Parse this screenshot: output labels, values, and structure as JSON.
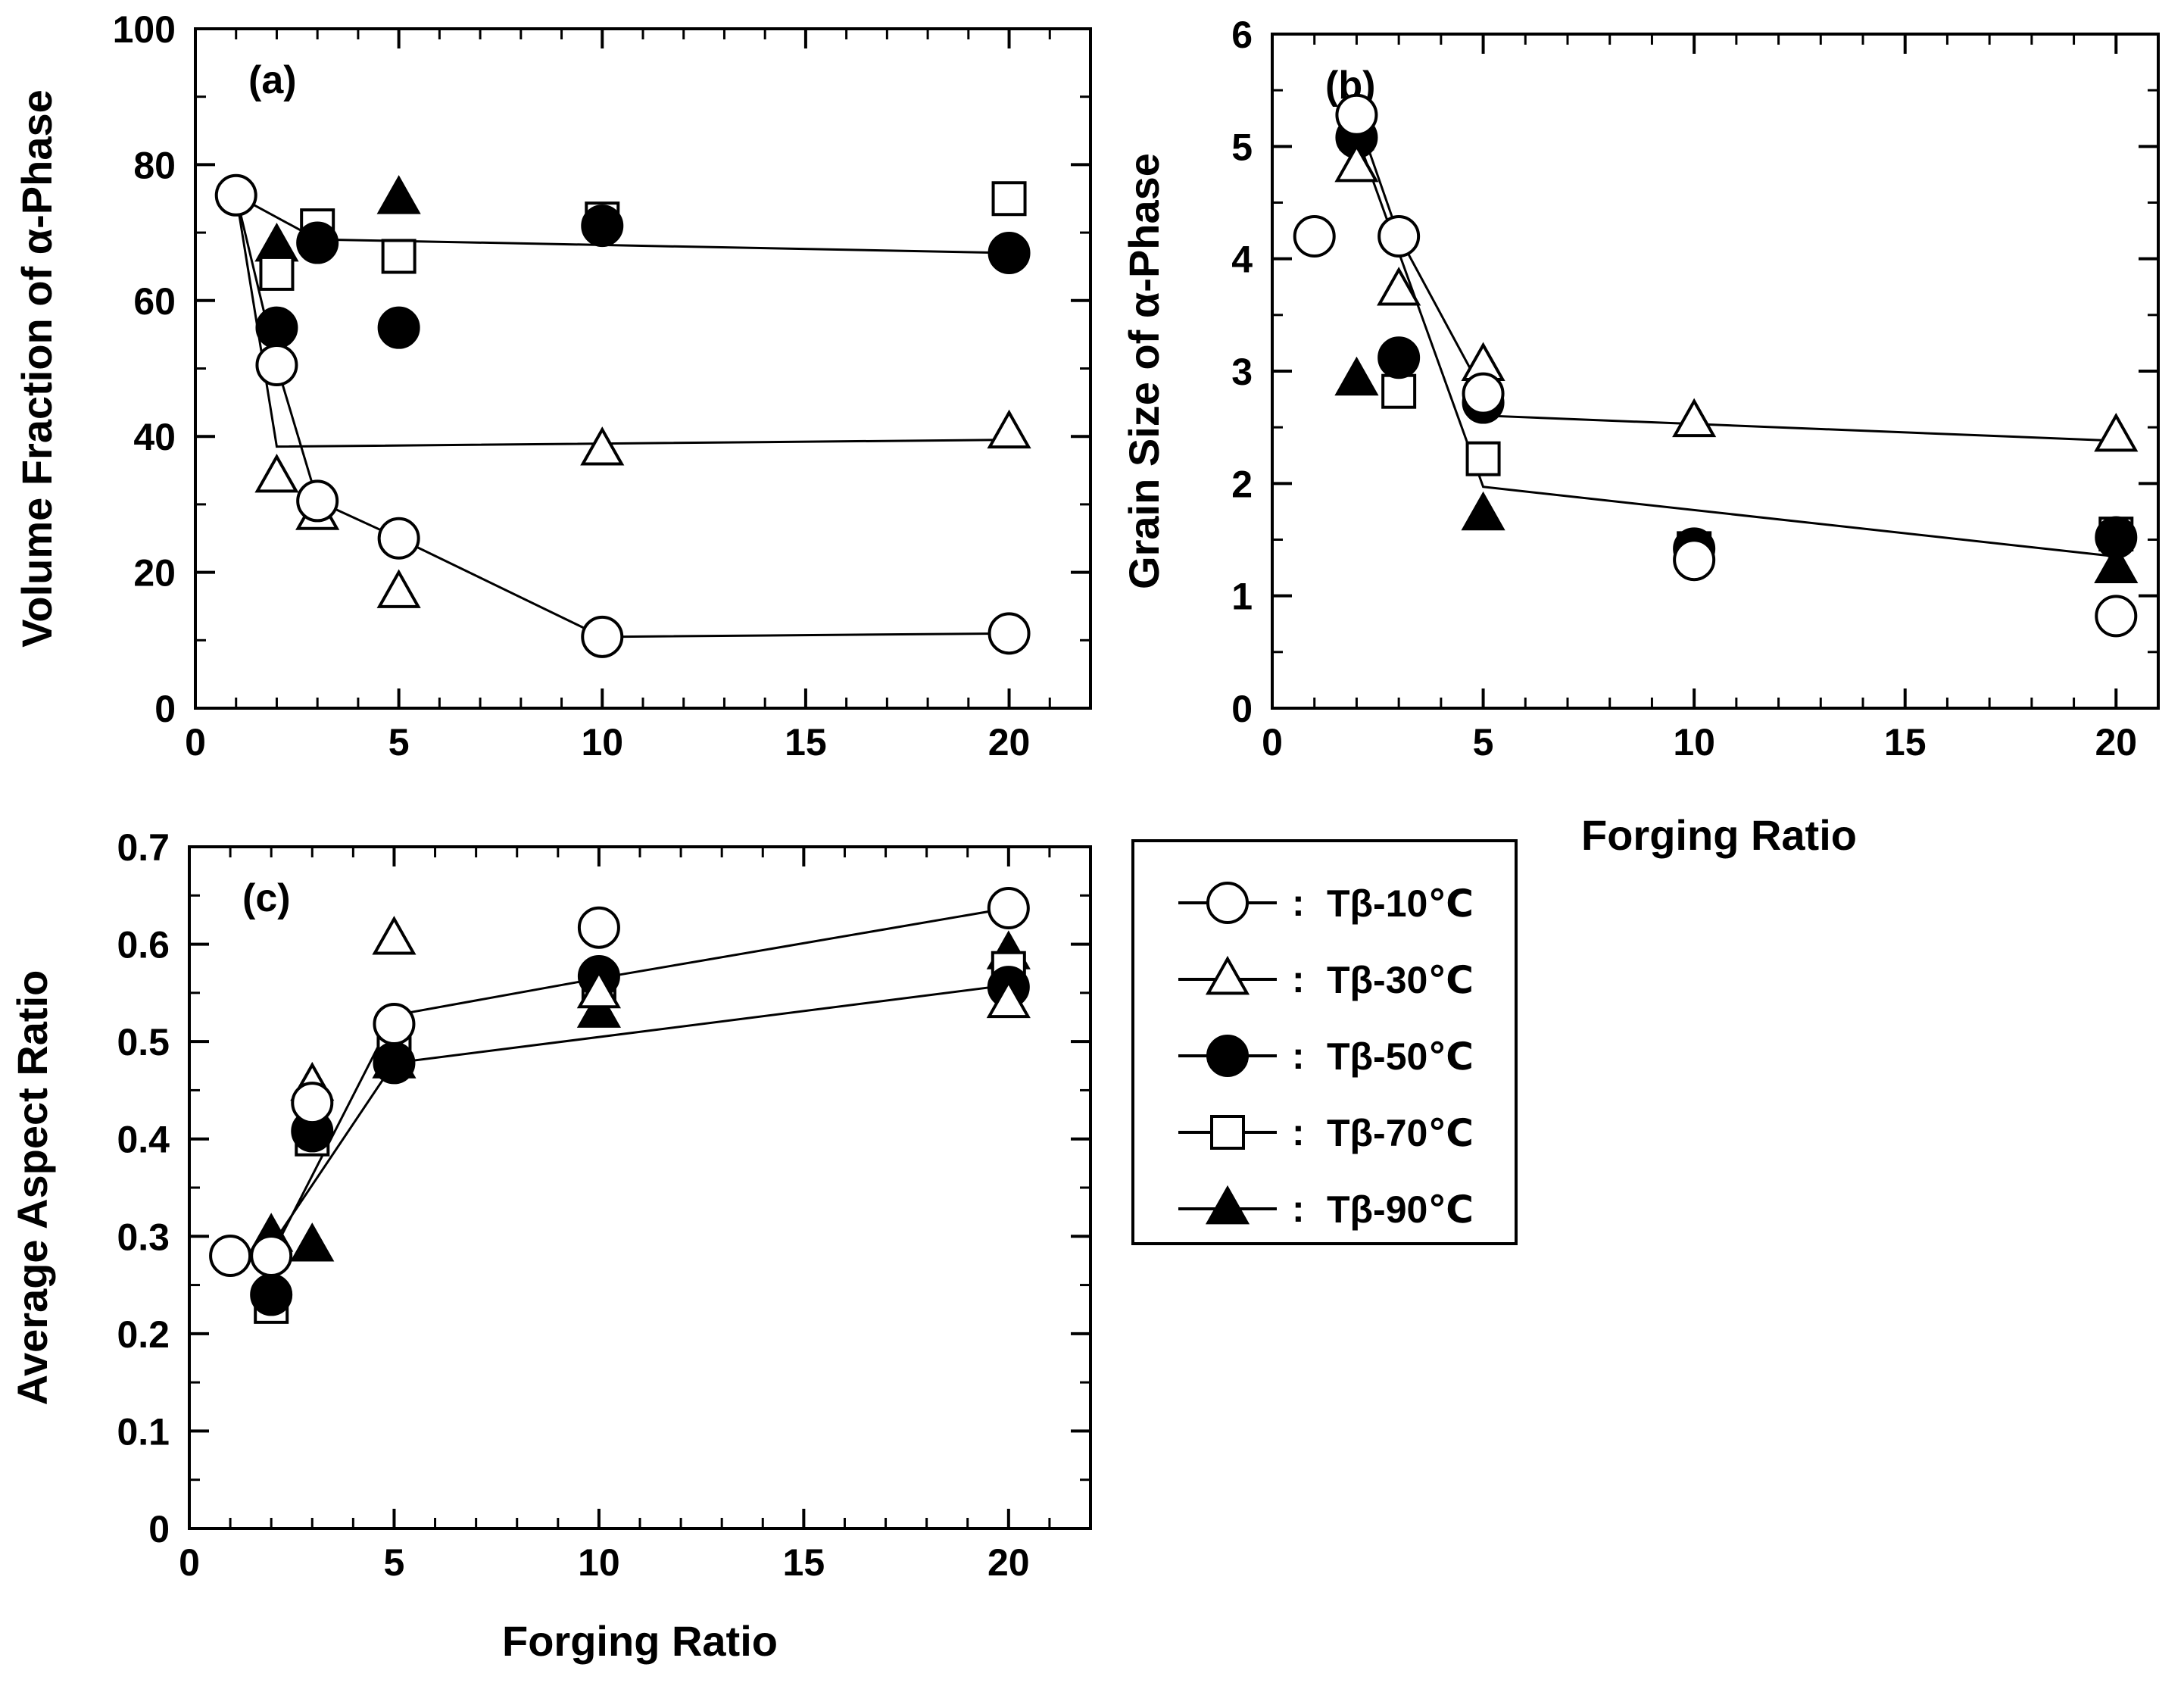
{
  "chart_data": [
    {
      "type": "scatter",
      "panel_label": "(a)",
      "xlabel": "",
      "ylabel": "Volume Fraction of α-Phase",
      "xlim": [
        0,
        22
      ],
      "ylim": [
        0,
        100
      ],
      "xticks": [
        0,
        5,
        10,
        15,
        20
      ],
      "yticks": [
        0,
        20,
        40,
        60,
        80,
        100
      ],
      "xtick_labels": [
        "0",
        "5",
        "10",
        "15",
        "20"
      ],
      "ytick_labels": [
        "0",
        "20",
        "40",
        "60",
        "80",
        "100"
      ],
      "series": [
        {
          "name": "Tβ-10℃",
          "marker": "circle-open",
          "x": [
            1,
            2,
            3,
            5,
            10,
            20
          ],
          "y": [
            75.5,
            50.5,
            30.5,
            25,
            10.5,
            11
          ]
        },
        {
          "name": "Tβ-30℃",
          "marker": "triangle-open",
          "x": [
            2,
            3,
            5,
            10,
            20
          ],
          "y": [
            34,
            28.5,
            17,
            38,
            40.5
          ]
        },
        {
          "name": "Tβ-50℃",
          "marker": "circle-filled",
          "x": [
            2,
            3,
            5,
            10,
            20
          ],
          "y": [
            56,
            68.5,
            56,
            71,
            67
          ]
        },
        {
          "name": "Tβ-70℃",
          "marker": "square-open",
          "x": [
            2,
            3,
            5,
            10,
            20
          ],
          "y": [
            64,
            71,
            66.5,
            72,
            75
          ]
        },
        {
          "name": "Tβ-90℃",
          "marker": "triangle-filled",
          "x": [
            2,
            5
          ],
          "y": [
            68,
            75
          ]
        }
      ],
      "trend_lines": [
        {
          "x": [
            1,
            2,
            3,
            5,
            10,
            20
          ],
          "y": [
            75.5,
            50.5,
            30.5,
            25,
            10.5,
            11
          ]
        },
        {
          "x": [
            1,
            2,
            20
          ],
          "y": [
            75.5,
            38.5,
            39.5
          ]
        },
        {
          "x": [
            1,
            3,
            20
          ],
          "y": [
            75.5,
            69,
            67
          ]
        }
      ]
    },
    {
      "type": "scatter",
      "panel_label": "(b)",
      "xlabel": "Forging Ratio",
      "ylabel": "Grain Size of α-Phase",
      "xlim": [
        0,
        21
      ],
      "ylim": [
        0,
        6
      ],
      "xticks": [
        0,
        5,
        10,
        15,
        20
      ],
      "yticks": [
        0,
        1,
        2,
        3,
        4,
        5,
        6
      ],
      "xtick_labels": [
        "0",
        "5",
        "10",
        "15",
        "20"
      ],
      "ytick_labels": [
        "0",
        "1",
        "2",
        "3",
        "4",
        "5",
        "6"
      ],
      "series": [
        {
          "name": "Tβ-10℃",
          "marker": "circle-open",
          "x": [
            1,
            2,
            3,
            5,
            10,
            20
          ],
          "y": [
            4.2,
            5.28,
            4.2,
            2.8,
            1.32,
            0.82
          ]
        },
        {
          "name": "Tβ-30℃",
          "marker": "triangle-open",
          "x": [
            2,
            3,
            5,
            10,
            20
          ],
          "y": [
            4.82,
            3.72,
            3.05,
            2.55,
            2.42
          ]
        },
        {
          "name": "Tβ-50℃",
          "marker": "circle-filled",
          "x": [
            2,
            3,
            5,
            10,
            20
          ],
          "y": [
            5.08,
            3.12,
            2.72,
            1.42,
            1.52
          ]
        },
        {
          "name": "Tβ-70℃",
          "marker": "square-open",
          "x": [
            2,
            3,
            5,
            10,
            20
          ],
          "y": [
            5.12,
            2.82,
            2.22,
            1.42,
            1.55
          ]
        },
        {
          "name": "Tβ-90℃",
          "marker": "triangle-filled",
          "x": [
            2,
            5,
            20
          ],
          "y": [
            2.92,
            1.72,
            1.25
          ]
        }
      ],
      "trend_lines": [
        {
          "x": [
            2,
            3,
            5.3,
            20
          ],
          "y": [
            5.28,
            4.2,
            2.6,
            2.38
          ]
        },
        {
          "x": [
            2,
            5,
            20
          ],
          "y": [
            5.1,
            1.97,
            1.35
          ]
        }
      ]
    },
    {
      "type": "scatter",
      "panel_label": "(c)",
      "xlabel": "Forging Ratio",
      "ylabel": "Average Aspect Ratio",
      "xlim": [
        0,
        22
      ],
      "ylim": [
        0,
        0.7
      ],
      "xticks": [
        0,
        5,
        10,
        15,
        20
      ],
      "yticks": [
        0,
        0.1,
        0.2,
        0.3,
        0.4,
        0.5,
        0.6,
        0.7
      ],
      "xtick_labels": [
        "0",
        "5",
        "10",
        "15",
        "20"
      ],
      "ytick_labels": [
        "0",
        "0.1",
        "0.2",
        "0.3",
        "0.4",
        "0.5",
        "0.6",
        "0.7"
      ],
      "series": [
        {
          "name": "Tβ-10℃",
          "marker": "circle-open",
          "x": [
            1,
            2,
            3,
            5,
            10,
            20
          ],
          "y": [
            0.28,
            0.28,
            0.437,
            0.518,
            0.617,
            0.637
          ]
        },
        {
          "name": "Tβ-30℃",
          "marker": "triangle-open",
          "x": [
            3,
            5,
            10,
            20
          ],
          "y": [
            0.455,
            0.605,
            0.55,
            0.54
          ]
        },
        {
          "name": "Tβ-50℃",
          "marker": "circle-filled",
          "x": [
            2,
            3,
            5,
            10,
            20
          ],
          "y": [
            0.24,
            0.408,
            0.478,
            0.567,
            0.556
          ]
        },
        {
          "name": "Tβ-70℃",
          "marker": "square-open",
          "x": [
            2,
            3,
            5,
            10,
            20
          ],
          "y": [
            0.228,
            0.4,
            0.49,
            0.56,
            0.575
          ]
        },
        {
          "name": "Tβ-90℃",
          "marker": "triangle-filled",
          "x": [
            2,
            3,
            5,
            10,
            20
          ],
          "y": [
            0.3,
            0.29,
            0.478,
            0.53,
            0.59
          ]
        }
      ],
      "trend_lines": [
        {
          "x": [
            1,
            2,
            5,
            10,
            20
          ],
          "y": [
            0.28,
            0.28,
            0.527,
            0.565,
            0.637
          ]
        },
        {
          "x": [
            1,
            2,
            5,
            20
          ],
          "y": [
            0.28,
            0.29,
            0.478,
            0.558
          ]
        }
      ]
    }
  ],
  "legend": {
    "separator": ":",
    "entries": [
      {
        "label": "Tβ-10℃",
        "marker": "circle-open"
      },
      {
        "label": "Tβ-30℃",
        "marker": "triangle-open"
      },
      {
        "label": "Tβ-50℃",
        "marker": "circle-filled"
      },
      {
        "label": "Tβ-70℃",
        "marker": "square-open"
      },
      {
        "label": "Tβ-90℃",
        "marker": "triangle-filled"
      }
    ]
  },
  "colors": {
    "ink": "#000000",
    "background": "#ffffff"
  }
}
